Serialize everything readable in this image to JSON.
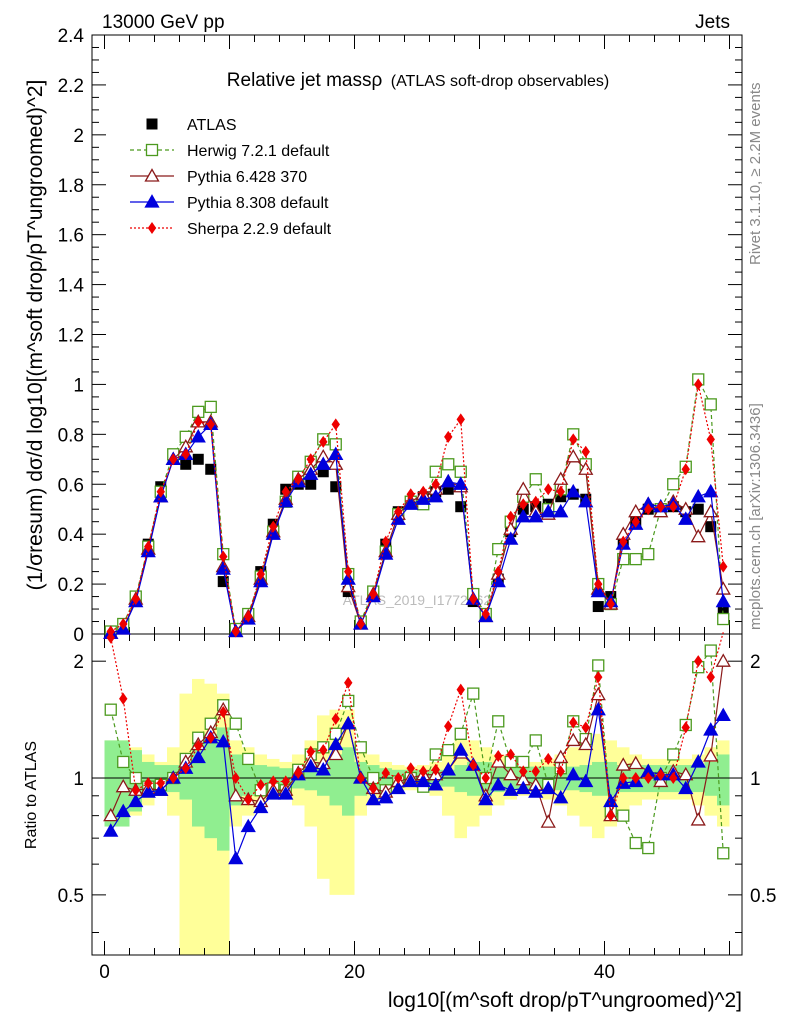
{
  "header": {
    "left": "13000 GeV pp",
    "right": "Jets"
  },
  "side_labels": {
    "rivet": "Rivet 3.1.10, ≥ 2.2M events",
    "mcplots": "mcplots.cern.ch [arXiv:1306.3436]"
  },
  "watermark": "ATLAS_2019_I1772062",
  "colors": {
    "atlas": "#000000",
    "herwig": "#4c9a1f",
    "pythia6": "#8b1a1a",
    "pythia8": "#0000dd",
    "sherpa": "#ee0000",
    "band_inner": "#90ee90",
    "band_outer": "#ffff99"
  },
  "chart_data": {
    "type": "line",
    "title": "Relative jet massρ",
    "subtitle": "(ATLAS soft-drop observables)",
    "xlabel": "log10[(m^soft drop/pT^ungroomed)^2]",
    "ylabel": "(1/σresum) dσ/d log10[(m^soft drop/pT^ungroomed)^2]",
    "ratio_ylabel": "Ratio to ATLAS",
    "xlim": [
      -1,
      51
    ],
    "ylim": [
      0,
      2.4
    ],
    "ratio_ylim": [
      0.35,
      2.35
    ],
    "ratio_scale": "log",
    "x_ticks": [
      0,
      20,
      40
    ],
    "y_ticks": [
      0,
      0.2,
      0.4,
      0.6,
      0.8,
      1,
      1.2,
      1.4,
      1.6,
      1.8,
      2,
      2.2,
      2.4
    ],
    "ratio_ticks": [
      0.5,
      1,
      2
    ],
    "legend_position": "top-left",
    "x": [
      0.5,
      1.5,
      2.5,
      3.5,
      4.5,
      5.5,
      6.5,
      7.5,
      8.5,
      9.5,
      10.5,
      11.5,
      12.5,
      13.5,
      14.5,
      15.5,
      16.5,
      17.5,
      18.5,
      19.5,
      20.5,
      21.5,
      22.5,
      23.5,
      24.5,
      25.5,
      26.5,
      27.5,
      28.5,
      29.5,
      30.5,
      31.5,
      32.5,
      33.5,
      34.5,
      35.5,
      36.5,
      37.5,
      38.5,
      39.5,
      40.5,
      41.5,
      42.5,
      43.5,
      44.5,
      45.5,
      46.5,
      47.5,
      48.5,
      49.5
    ],
    "series": [
      {
        "name": "ATLAS",
        "marker": "square-filled",
        "values": [
          0.005,
          0.025,
          0.15,
          0.36,
          0.59,
          0.7,
          0.68,
          0.7,
          0.66,
          0.21,
          0.01,
          0.08,
          0.25,
          0.44,
          0.58,
          0.6,
          0.6,
          0.65,
          0.59,
          0.17,
          0.04,
          0.17,
          0.36,
          0.49,
          0.53,
          0.55,
          0.57,
          0.58,
          0.51,
          0.13,
          0.08,
          0.22,
          0.41,
          0.5,
          0.51,
          0.52,
          0.55,
          0.56,
          0.54,
          0.11,
          0.15,
          0.37,
          0.45,
          0.5,
          0.5,
          0.51,
          0.49,
          0.5,
          0.43,
          0.09
        ]
      },
      {
        "name": "Herwig 7.2.1 default",
        "marker": "square-open",
        "linestyle": "dashed",
        "values": [
          0.01,
          0.04,
          0.15,
          0.35,
          0.57,
          0.72,
          0.79,
          0.89,
          0.91,
          0.32,
          0.02,
          0.08,
          0.23,
          0.41,
          0.53,
          0.63,
          0.69,
          0.78,
          0.76,
          0.24,
          0.05,
          0.17,
          0.33,
          0.48,
          0.53,
          0.52,
          0.65,
          0.68,
          0.65,
          0.16,
          0.08,
          0.34,
          0.45,
          0.55,
          0.62,
          0.5,
          0.58,
          0.8,
          0.68,
          0.2,
          0.12,
          0.3,
          0.3,
          0.32,
          0.5,
          0.6,
          0.67,
          1.02,
          0.92,
          0.06
        ]
      },
      {
        "name": "Pythia 6.428 370",
        "marker": "triangle-open",
        "values": [
          0.003,
          0.02,
          0.14,
          0.34,
          0.55,
          0.7,
          0.75,
          0.85,
          0.85,
          0.27,
          0.01,
          0.07,
          0.22,
          0.41,
          0.54,
          0.62,
          0.66,
          0.71,
          0.68,
          0.19,
          0.04,
          0.16,
          0.33,
          0.48,
          0.53,
          0.56,
          0.58,
          0.61,
          0.59,
          0.14,
          0.07,
          0.24,
          0.42,
          0.58,
          0.49,
          0.48,
          0.62,
          0.71,
          0.66,
          0.18,
          0.12,
          0.4,
          0.49,
          0.52,
          0.49,
          0.53,
          0.5,
          0.39,
          0.49,
          0.18
        ]
      },
      {
        "name": "Pythia 8.308 default",
        "marker": "triangle-filled",
        "values": [
          0.003,
          0.02,
          0.13,
          0.33,
          0.55,
          0.7,
          0.72,
          0.79,
          0.84,
          0.26,
          0.01,
          0.06,
          0.21,
          0.4,
          0.53,
          0.61,
          0.64,
          0.68,
          0.72,
          0.22,
          0.04,
          0.15,
          0.32,
          0.46,
          0.52,
          0.54,
          0.55,
          0.61,
          0.6,
          0.14,
          0.07,
          0.21,
          0.38,
          0.47,
          0.47,
          0.49,
          0.49,
          0.57,
          0.53,
          0.17,
          0.13,
          0.36,
          0.44,
          0.52,
          0.51,
          0.52,
          0.46,
          0.55,
          0.57,
          0.13
        ]
      },
      {
        "name": "Sherpa 2.2.9 default",
        "marker": "diamond-filled",
        "linestyle": "dotted",
        "values": [
          0.01,
          0.04,
          0.14,
          0.35,
          0.57,
          0.7,
          0.72,
          0.85,
          0.84,
          0.31,
          0.01,
          0.07,
          0.24,
          0.43,
          0.57,
          0.62,
          0.7,
          0.77,
          0.84,
          0.25,
          0.04,
          0.16,
          0.37,
          0.49,
          0.56,
          0.57,
          0.6,
          0.79,
          0.86,
          0.14,
          0.08,
          0.25,
          0.47,
          0.52,
          0.53,
          0.58,
          0.57,
          0.78,
          0.73,
          0.2,
          0.12,
          0.37,
          0.45,
          0.5,
          0.51,
          0.51,
          0.66,
          1.0,
          0.78,
          0.27
        ]
      }
    ],
    "ratio_series": [
      {
        "name": "Herwig 7.2.1 default",
        "values": [
          1.5,
          1.1,
          1.0,
          0.95,
          0.96,
          1.0,
          1.12,
          1.27,
          1.38,
          1.54,
          1.38,
          1.12,
          0.93,
          0.94,
          0.93,
          1.05,
          1.15,
          1.2,
          1.3,
          1.58,
          1.2,
          1.0,
          0.93,
          0.98,
          1.0,
          0.95,
          1.15,
          1.18,
          1.3,
          1.65,
          1.0,
          1.4,
          1.1,
          1.1,
          1.25,
          0.96,
          1.06,
          1.4,
          1.26,
          1.95,
          0.82,
          0.8,
          0.68,
          0.66,
          1.0,
          1.15,
          1.37,
          1.93,
          2.13,
          0.64
        ]
      },
      {
        "name": "Pythia 6.428 370",
        "values": [
          0.8,
          0.95,
          0.93,
          0.94,
          0.93,
          1.0,
          1.1,
          1.22,
          1.31,
          1.5,
          0.9,
          0.88,
          0.87,
          0.93,
          0.93,
          1.03,
          1.1,
          1.09,
          1.15,
          1.38,
          1.0,
          0.94,
          0.92,
          0.98,
          1.0,
          1.02,
          1.02,
          1.05,
          1.16,
          1.08,
          0.9,
          1.1,
          1.02,
          0.99,
          0.96,
          0.77,
          1.13,
          1.25,
          1.22,
          1.64,
          0.8,
          1.08,
          1.09,
          1.04,
          0.98,
          1.04,
          1.02,
          0.78,
          1.14,
          2.0
        ]
      },
      {
        "name": "Pythia 8.308 default",
        "values": [
          0.73,
          0.82,
          0.87,
          0.92,
          0.93,
          1.0,
          1.06,
          1.13,
          1.27,
          1.24,
          0.62,
          0.75,
          0.84,
          0.91,
          0.91,
          1.02,
          1.07,
          1.05,
          1.22,
          1.38,
          1.0,
          0.88,
          0.89,
          0.94,
          0.98,
          0.98,
          0.96,
          1.05,
          1.18,
          1.08,
          0.88,
          0.96,
          0.93,
          0.94,
          0.92,
          0.94,
          0.89,
          1.02,
          0.98,
          1.5,
          0.87,
          0.97,
          0.98,
          1.04,
          1.02,
          1.02,
          0.94,
          1.1,
          1.33,
          1.45
        ]
      },
      {
        "name": "Sherpa 2.2.9 default",
        "values": [
          2.3,
          1.6,
          0.93,
          0.97,
          0.97,
          1.0,
          1.06,
          1.21,
          1.27,
          1.48,
          1.0,
          0.88,
          0.96,
          0.98,
          0.98,
          1.03,
          1.17,
          1.18,
          1.42,
          1.76,
          1.0,
          0.94,
          1.03,
          1.0,
          1.06,
          1.04,
          1.05,
          1.36,
          1.69,
          1.08,
          1.0,
          1.14,
          1.15,
          1.04,
          1.04,
          1.12,
          1.04,
          1.39,
          1.35,
          1.82,
          0.8,
          1.0,
          1.0,
          1.0,
          1.02,
          1.0,
          1.35,
          2.0,
          1.82,
          3.0
        ]
      }
    ],
    "ratio_band_inner": [
      1.25,
      1.25,
      1.18,
      1.1,
      1.08,
      1.08,
      1.12,
      1.25,
      1.3,
      1.35,
      1.15,
      1.1,
      1.08,
      1.07,
      1.06,
      1.06,
      1.07,
      1.1,
      1.15,
      1.2,
      1.1,
      1.08,
      1.06,
      1.05,
      1.05,
      1.05,
      1.05,
      1.05,
      1.08,
      1.1,
      1.1,
      1.08,
      1.07,
      1.07,
      1.07,
      1.07,
      1.07,
      1.07,
      1.08,
      1.1,
      1.1,
      1.08,
      1.08,
      1.08,
      1.08,
      1.08,
      1.08,
      1.08,
      1.1,
      1.15
    ],
    "ratio_band_outer": [
      1.25,
      1.25,
      1.2,
      1.15,
      1.1,
      1.2,
      1.65,
      1.8,
      1.75,
      1.65,
      1.25,
      1.2,
      1.15,
      1.12,
      1.1,
      1.15,
      1.25,
      1.45,
      1.5,
      1.5,
      1.2,
      1.15,
      1.1,
      1.08,
      1.07,
      1.08,
      1.1,
      1.2,
      1.3,
      1.25,
      1.2,
      1.15,
      1.12,
      1.1,
      1.1,
      1.12,
      1.15,
      1.2,
      1.25,
      1.3,
      1.25,
      1.2,
      1.15,
      1.12,
      1.12,
      1.12,
      1.12,
      1.15,
      1.2,
      1.25
    ]
  }
}
